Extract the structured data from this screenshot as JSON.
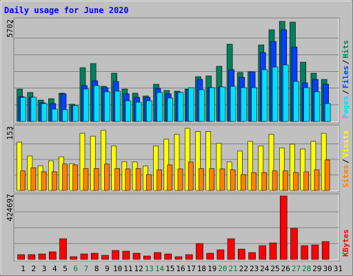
{
  "title": "Daily usage for June 2020",
  "legend_separator": "/",
  "chart_data": [
    {
      "type": "bar",
      "ylim": [
        0,
        5702
      ],
      "yticks": [
        5702
      ],
      "series": [
        {
          "name": "Hits",
          "color": "#00805c",
          "values": [
            1847,
            1651,
            1218,
            1297,
            1612,
            983,
            3066,
            3301,
            2004,
            2752,
            1847,
            1612,
            1454,
            2122,
            1769,
            1729,
            1847,
            2555,
            2594,
            3144,
            4402,
            2791,
            2830,
            4362,
            5227,
            5702,
            5663,
            3380,
            2752,
            2397,
            null
          ]
        },
        {
          "name": "Files",
          "color": "#0040ff",
          "values": [
            1415,
            1376,
            1061,
            1022,
            1572,
            904,
            2044,
            2319,
            1926,
            2279,
            1572,
            1376,
            1376,
            1886,
            1572,
            1651,
            1808,
            2397,
            1926,
            1965,
            2948,
            2515,
            2830,
            3930,
            4559,
            5227,
            4244,
            2201,
            2397,
            2122,
            null
          ]
        },
        {
          "name": "Pages",
          "color": "#00e0ff",
          "values": [
            1376,
            1376,
            1022,
            707,
            668,
            904,
            1847,
            2044,
            1690,
            1729,
            1179,
            1100,
            1179,
            1651,
            1336,
            1651,
            1926,
            1808,
            1926,
            1965,
            2004,
            1926,
            1926,
            2948,
            3105,
            3223,
            2279,
            1926,
            1690,
            1022,
            null
          ]
        }
      ]
    },
    {
      "type": "bar",
      "ylim": [
        0,
        153
      ],
      "yticks": [
        153
      ],
      "series": [
        {
          "name": "Visits",
          "color": "#ffff00",
          "values": [
            119,
            85,
            61,
            73,
            83,
            66,
            141,
            134,
            148,
            110,
            71,
            70,
            60,
            110,
            126,
            138,
            153,
            145,
            145,
            116,
            70,
            97,
            121,
            110,
            138,
            105,
            114,
            102,
            121,
            141,
            null
          ]
        },
        {
          "name": "Sites",
          "color": "#ff8000",
          "values": [
            48,
            56,
            46,
            46,
            65,
            63,
            54,
            54,
            65,
            54,
            53,
            54,
            39,
            51,
            63,
            53,
            70,
            54,
            54,
            53,
            51,
            39,
            44,
            44,
            48,
            48,
            44,
            46,
            51,
            75,
            null
          ]
        }
      ]
    },
    {
      "type": "bar",
      "ylim": [
        0,
        424697
      ],
      "yticks": [
        424697
      ],
      "categories": [
        "1",
        "2",
        "3",
        "4",
        "5",
        "6",
        "7",
        "8",
        "9",
        "10",
        "11",
        "12",
        "13",
        "14",
        "15",
        "16",
        "17",
        "18",
        "19",
        "20",
        "21",
        "22",
        "23",
        "24",
        "25",
        "26",
        "27",
        "28",
        "29",
        "30",
        "31"
      ],
      "highlight_categories": [
        "6",
        "7",
        "13",
        "14",
        "20",
        "21",
        "27",
        "28"
      ],
      "highlight_color": "#008040",
      "series": [
        {
          "name": "KBytes",
          "color": "#ff0000",
          "values": [
            32300,
            32300,
            36900,
            50800,
            138500,
            18500,
            36900,
            41500,
            27700,
            60000,
            55400,
            41500,
            23100,
            46200,
            36900,
            18500,
            32300,
            106200,
            41500,
            64600,
            138500,
            69200,
            46200,
            92300,
            110800,
            424697,
            207700,
            92300,
            96900,
            120000,
            null
          ]
        }
      ]
    }
  ]
}
